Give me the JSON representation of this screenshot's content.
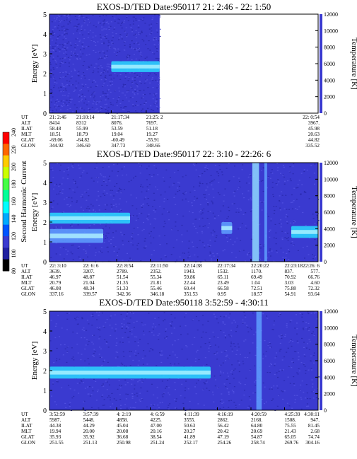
{
  "panels": [
    {
      "title": "EXOS-D/TED   Date:950117  21: 2:46 - 22: 1:50",
      "ylabel": "Energy [eV]",
      "rlabel": "Temperature [K]",
      "yticks": [
        "0",
        "1",
        "2",
        "3",
        "4",
        "5"
      ],
      "rticks": [
        "0",
        "2000",
        "4000",
        "6000",
        "8000",
        "10000",
        "12000"
      ],
      "data_end_fraction": 0.41,
      "bands": [
        {
          "x0": 0.23,
          "x1": 0.41,
          "y": 2.35,
          "h": 0.55,
          "color": "#2ad8ff"
        }
      ],
      "streaks": [],
      "table": {
        "labels": [
          "UT",
          "ALT",
          "ILAT",
          "MLT",
          "GLAT",
          "GLON"
        ],
        "columns": [
          [
            "21: 2:46",
            "8414",
            "58.48",
            "18.51",
            "-69.06",
            "344.92"
          ],
          [
            "21:10:14",
            "8312",
            "55.99",
            "18.79",
            "-64.82",
            "346.60"
          ],
          [
            "21:17:34",
            "8076.",
            "53.59",
            "19.04",
            "-60.49",
            "347.73"
          ],
          [
            "21:25: 2",
            "7697.",
            "51.18",
            "19.27",
            "-55.91",
            "348.66"
          ],
          [
            "22: 0:54",
            "3967.",
            "45.98",
            "20.63",
            "44.82",
            "335.52"
          ]
        ]
      }
    },
    {
      "title": "EXOS-D/TED   Date:950117  22: 3:10 - 22:26: 6",
      "ylabel": "Energy [eV]",
      "rlabel": "Temperature [K]",
      "yticks": [
        "0",
        "1",
        "2",
        "3",
        "4",
        "5"
      ],
      "rticks": [
        "0",
        "2000",
        "4000",
        "6000",
        "8000",
        "10000",
        "12000"
      ],
      "data_end_fraction": 1.0,
      "bands": [
        {
          "x0": 0.0,
          "x1": 0.3,
          "y": 2.2,
          "h": 0.55,
          "color": "#2ad8ff"
        },
        {
          "x0": 0.0,
          "x1": 0.2,
          "y": 1.3,
          "h": 0.7,
          "color": "#5fa0ff"
        },
        {
          "x0": 0.9,
          "x1": 1.0,
          "y": 1.5,
          "h": 0.6,
          "color": "#2ad8ff"
        },
        {
          "x0": 0.64,
          "x1": 0.68,
          "y": 1.7,
          "h": 0.6,
          "color": "#5fa0ff"
        }
      ],
      "streaks": [
        {
          "x": 0.755,
          "w": 0.025,
          "color": "#8fd8ff"
        },
        {
          "x": 0.8,
          "w": 0.01,
          "color": "#5fa0ff"
        }
      ],
      "table": {
        "labels": [
          "UT",
          "ALT",
          "ILAT",
          "MLT",
          "GLAT",
          "GLON"
        ],
        "columns": [
          [
            "22: 3:10",
            "3639.",
            "46.97",
            "20.79",
            "46.08",
            "337.16"
          ],
          [
            "22: 6: 6",
            "3207.",
            "48.87",
            "21.04",
            "48.34",
            "339.57"
          ],
          [
            "22: 8:54",
            "2789.",
            "51.54",
            "21.35",
            "51.33",
            "342.36"
          ],
          [
            "22:11:50",
            "2352.",
            "55.34",
            "21.81",
            "55.46",
            "346.18"
          ],
          [
            "22:14:38",
            "1943.",
            "59.86",
            "22.44",
            "60.44",
            "351.53"
          ],
          [
            "22:17:34",
            "1532.",
            "65.11",
            "23.49",
            "66.58",
            "0.95"
          ],
          [
            "22:20:22",
            "1170.",
            "69.49",
            "1.04",
            "72.51",
            "18.57"
          ],
          [
            "22:23:18",
            "837.",
            "70.92",
            "3.03",
            "75.88",
            "54.91"
          ],
          [
            "22:26: 6",
            "577.",
            "66.76",
            "4.60",
            "72.32",
            "93.64"
          ]
        ]
      }
    },
    {
      "title": "EXOS-D/TED   Date:950118  3:52:59 - 4:30:11",
      "ylabel": "Energy [eV]",
      "rlabel": "Temperature [K]",
      "yticks": [
        "0",
        "1",
        "2",
        "3",
        "4",
        "5"
      ],
      "rticks": [
        "0",
        "2000",
        "4000",
        "6000",
        "8000",
        "10000",
        "12000"
      ],
      "data_end_fraction": 1.0,
      "bands": [
        {
          "x0": 0.0,
          "x1": 0.6,
          "y": 1.9,
          "h": 0.6,
          "color": "#2ad8ff"
        }
      ],
      "streaks": [
        {
          "x": 0.77,
          "w": 0.02,
          "color": "#5fa0ff"
        }
      ],
      "table": {
        "labels": [
          "UT",
          "ALT",
          "ILAT",
          "MLT",
          "GLAT",
          "GLON"
        ],
        "columns": [
          [
            "3:52:59",
            "5987.",
            "44.38",
            "19.94",
            "35.93",
            "251.55"
          ],
          [
            "3:57:39",
            "5448.",
            "44.29",
            "20.00",
            "35.92",
            "251.13"
          ],
          [
            "4: 2:19",
            "4858.",
            "45.04",
            "20.08",
            "36.68",
            "250.98"
          ],
          [
            "4: 6:59",
            "4225.",
            "47.00",
            "20.16",
            "38.54",
            "251.24"
          ],
          [
            "4:11:39",
            "3555.",
            "50.63",
            "20.27",
            "41.89",
            "252.17"
          ],
          [
            "4:16:19",
            "2862.",
            "56.42",
            "20.42",
            "47.19",
            "254.26"
          ],
          [
            "4:20:59",
            "2168.",
            "64.80",
            "20.69",
            "54.87",
            "258.74"
          ],
          [
            "4:25:39",
            "1508.",
            "75.55",
            "21.43",
            "65.05",
            "269.76"
          ],
          [
            "4:30:11",
            "947.",
            "81.45",
            "2.68",
            "74.74",
            "304.16"
          ]
        ]
      }
    }
  ],
  "colorbar": {
    "label": "Second Harmonic Current",
    "ticks": [
      "80",
      "100",
      "120",
      "140",
      "160",
      "180",
      "200",
      "220",
      "240"
    ]
  },
  "chart_data": {
    "type": "heatmap",
    "title": "EXOS-D/TED",
    "ylabel": "Energy [eV]",
    "y2label": "Temperature [K]",
    "ylim": [
      0,
      5
    ],
    "y2lim": [
      0,
      12000
    ],
    "colorbar_label": "Second Harmonic Current",
    "colorbar_range": [
      80,
      240
    ]
  }
}
